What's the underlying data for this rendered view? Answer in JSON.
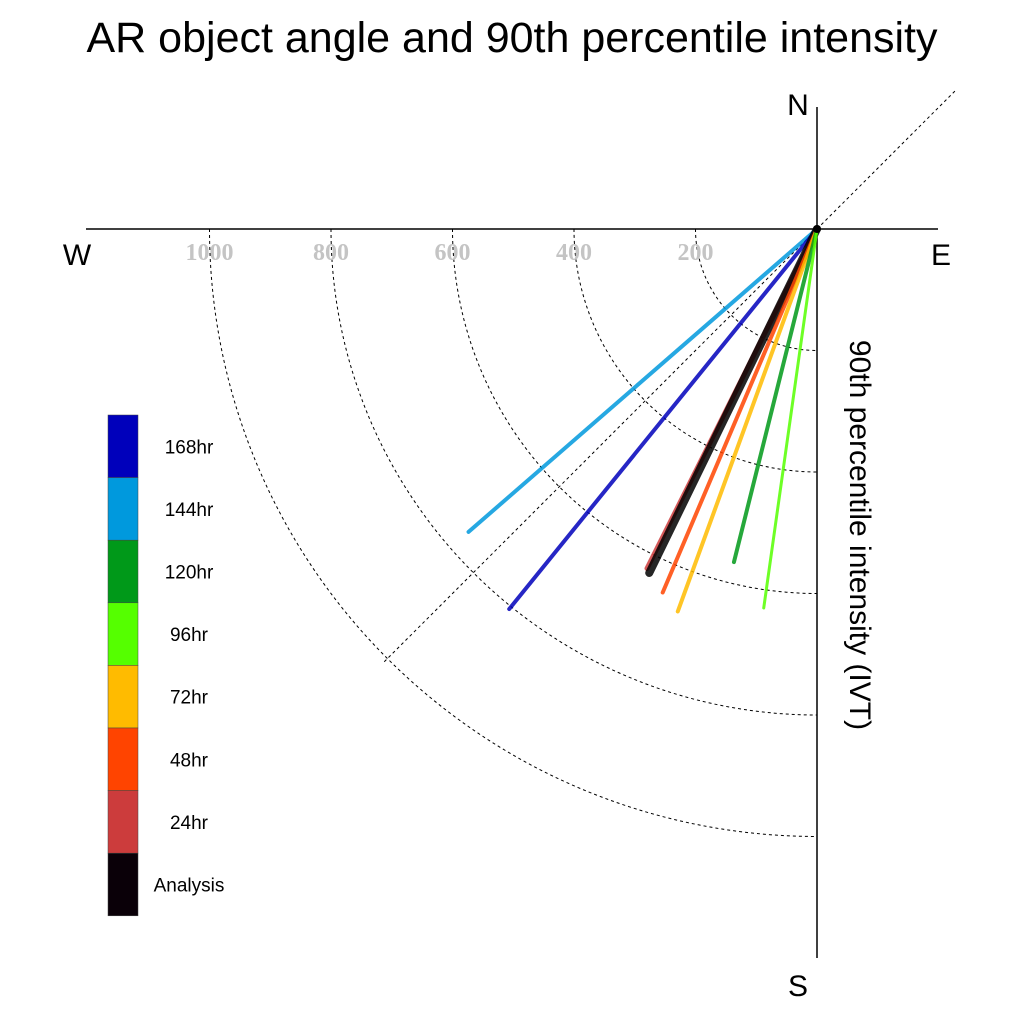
{
  "title": "AR object angle and 90th percentile intensity",
  "compass": {
    "n": "N",
    "s": "S",
    "e": "E",
    "w": "W"
  },
  "axis_label": "90th percentile intensity (IVT)",
  "chart_data": {
    "type": "polar-vector",
    "title": "AR object angle and 90th percentile intensity",
    "radial_label": "90th percentile intensity (IVT)",
    "radial_ticks": [
      200,
      400,
      600,
      800,
      1000
    ],
    "radial_tick_labels": [
      "200",
      "400",
      "600",
      "800",
      "1000"
    ],
    "radial_max": 1000,
    "angle_convention": "degrees clockwise from north",
    "reference_line_deg": [
      45,
      225
    ],
    "series": [
      {
        "name": "144hr",
        "color": "#0099dd",
        "angle_deg": 229.0,
        "intensity": 760,
        "width": 4
      },
      {
        "name": "168hr",
        "color": "#0000bb",
        "angle_deg": 219.0,
        "intensity": 805,
        "width": 4
      },
      {
        "name": "24hr",
        "color": "#cc3c3c",
        "angle_deg": 206.6,
        "intensity": 625,
        "width": 5
      },
      {
        "name": "Analysis",
        "color": "#000000",
        "angle_deg": 206.0,
        "intensity": 630,
        "width": 8
      },
      {
        "name": "48hr",
        "color": "#ff4400",
        "angle_deg": 203.0,
        "intensity": 650,
        "width": 4
      },
      {
        "name": "72hr",
        "color": "#ffbb00",
        "angle_deg": 200.0,
        "intensity": 670,
        "width": 4
      },
      {
        "name": "120hr",
        "color": "#009919",
        "angle_deg": 194.0,
        "intensity": 565,
        "width": 4
      },
      {
        "name": "96hr",
        "color": "#55ff00",
        "angle_deg": 188.0,
        "intensity": 630,
        "width": 3
      }
    ],
    "legend": {
      "position": "left",
      "entries": [
        {
          "label": "168hr",
          "color": "#0000bb"
        },
        {
          "label": "144hr",
          "color": "#0099dd"
        },
        {
          "label": "120hr",
          "color": "#009919"
        },
        {
          "label": "96hr",
          "color": "#55ff00"
        },
        {
          "label": "72hr",
          "color": "#ffbb00"
        },
        {
          "label": "48hr",
          "color": "#ff4400"
        },
        {
          "label": "24hr",
          "color": "#cc3c3c"
        },
        {
          "label": "Analysis",
          "color": "#0a0008"
        }
      ]
    }
  }
}
